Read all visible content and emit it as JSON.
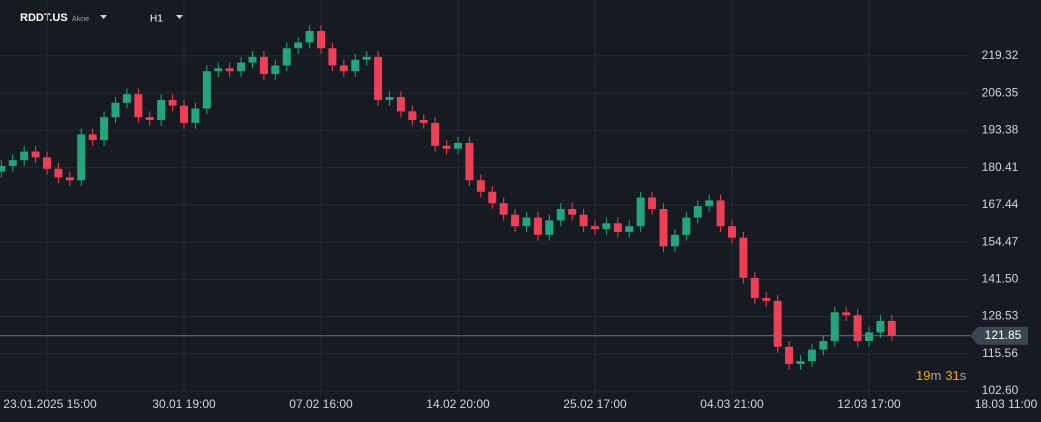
{
  "chart_data": {
    "type": "candlestick",
    "symbol": "RDDT.US",
    "asset_type": "Akcie",
    "timeframe": "H1",
    "up_color": "#22a67e",
    "down_color": "#ef3f57",
    "grid": true,
    "categories": [
      null,
      null,
      null,
      null,
      "23.01.2025 15:00",
      null,
      null,
      null,
      null,
      null,
      null,
      null,
      null,
      null,
      null,
      null,
      "30.01 19:00",
      null,
      null,
      null,
      null,
      null,
      null,
      null,
      null,
      null,
      null,
      null,
      "07.02 16:00",
      null,
      null,
      null,
      null,
      null,
      null,
      null,
      null,
      null,
      null,
      null,
      "14.02 20:00",
      null,
      null,
      null,
      null,
      null,
      null,
      null,
      null,
      null,
      null,
      null,
      "25.02 17:00",
      null,
      null,
      null,
      null,
      null,
      null,
      null,
      null,
      null,
      null,
      null,
      "04.03 21:00",
      null,
      null,
      null,
      null,
      null,
      null,
      null,
      null,
      null,
      null,
      null,
      "12.03 17:00",
      null,
      null,
      null,
      null,
      null,
      null,
      null,
      null,
      null,
      null,
      null,
      "18.03 11:00"
    ],
    "open": [
      179,
      181,
      183,
      186,
      184,
      180,
      177,
      176,
      192,
      190,
      198,
      203,
      206,
      198,
      197,
      204,
      202,
      196,
      201,
      214,
      215,
      214,
      217,
      219,
      213,
      216,
      222,
      224,
      228,
      222,
      216,
      214,
      218,
      219,
      204,
      205,
      200,
      197,
      196,
      188,
      187,
      189,
      176,
      172,
      168,
      164,
      160,
      163,
      157,
      162,
      166,
      164,
      160,
      159,
      161,
      158,
      160,
      170,
      166,
      153,
      157,
      163,
      167,
      169,
      160,
      156,
      142,
      135,
      134,
      118,
      112,
      113,
      117,
      120,
      130,
      129,
      120,
      123,
      127,
      null,
      null,
      null,
      null,
      null,
      null,
      null,
      null,
      null,
      null
    ],
    "high": [
      183,
      185,
      188,
      188,
      186,
      182,
      179,
      194,
      194,
      200,
      205,
      208,
      208,
      200,
      206,
      206,
      204,
      203,
      216,
      217,
      217,
      219,
      221,
      221,
      218,
      224,
      226,
      230,
      230,
      224,
      218,
      220,
      221,
      221,
      207,
      207,
      202,
      199,
      198,
      190,
      191,
      191,
      178,
      174,
      170,
      166,
      165,
      165,
      164,
      168,
      168,
      166,
      162,
      163,
      163,
      162,
      172,
      172,
      168,
      159,
      165,
      169,
      171,
      171,
      162,
      158,
      144,
      137,
      136,
      120,
      115,
      119,
      122,
      132,
      132,
      131,
      125,
      129,
      129,
      null,
      null,
      null,
      null,
      null,
      null,
      null,
      null,
      null,
      null
    ],
    "low": [
      177,
      179,
      181,
      182,
      178,
      175,
      174,
      174,
      188,
      188,
      196,
      201,
      196,
      195,
      195,
      200,
      194,
      194,
      199,
      212,
      212,
      212,
      215,
      211,
      211,
      214,
      220,
      222,
      220,
      214,
      212,
      212,
      216,
      202,
      202,
      198,
      195,
      194,
      186,
      185,
      185,
      174,
      170,
      166,
      162,
      158,
      158,
      155,
      155,
      160,
      162,
      158,
      157,
      157,
      156,
      156,
      158,
      164,
      151,
      151,
      155,
      161,
      165,
      158,
      154,
      140,
      133,
      132,
      116,
      110,
      110,
      111,
      115,
      118,
      127,
      118,
      118,
      121,
      119.85,
      null,
      null,
      null,
      null,
      null,
      null,
      null,
      null,
      null,
      null
    ],
    "close": [
      181,
      183,
      186,
      184,
      180,
      177,
      176,
      192,
      190,
      198,
      203,
      206,
      198,
      197,
      204,
      202,
      196,
      201,
      214,
      215,
      214,
      217,
      219,
      213,
      216,
      222,
      224,
      228,
      222,
      216,
      214,
      218,
      219,
      204,
      205,
      200,
      197,
      196,
      188,
      187,
      189,
      176,
      172,
      168,
      164,
      160,
      163,
      157,
      162,
      166,
      164,
      160,
      159,
      161,
      158,
      160,
      170,
      166,
      153,
      157,
      163,
      167,
      169,
      160,
      156,
      142,
      135,
      134,
      118,
      112,
      113,
      117,
      120,
      130,
      129,
      120,
      123,
      127,
      121.85,
      null,
      null,
      null,
      null,
      null,
      null,
      null,
      null,
      null,
      null
    ],
    "ylim": [
      101.2,
      238.8
    ],
    "yticks": [
      {
        "value": 102.6,
        "label": "102.60"
      },
      115.56,
      128.53,
      {
        "value": 141.5,
        "label": "141.50"
      },
      154.47,
      167.44,
      180.41,
      193.38,
      206.35,
      219.32
    ],
    "last_price": 121.85,
    "countdown": {
      "minutes": "19",
      "minutes_unit": "m",
      "seconds": "31",
      "seconds_unit": "s"
    }
  }
}
